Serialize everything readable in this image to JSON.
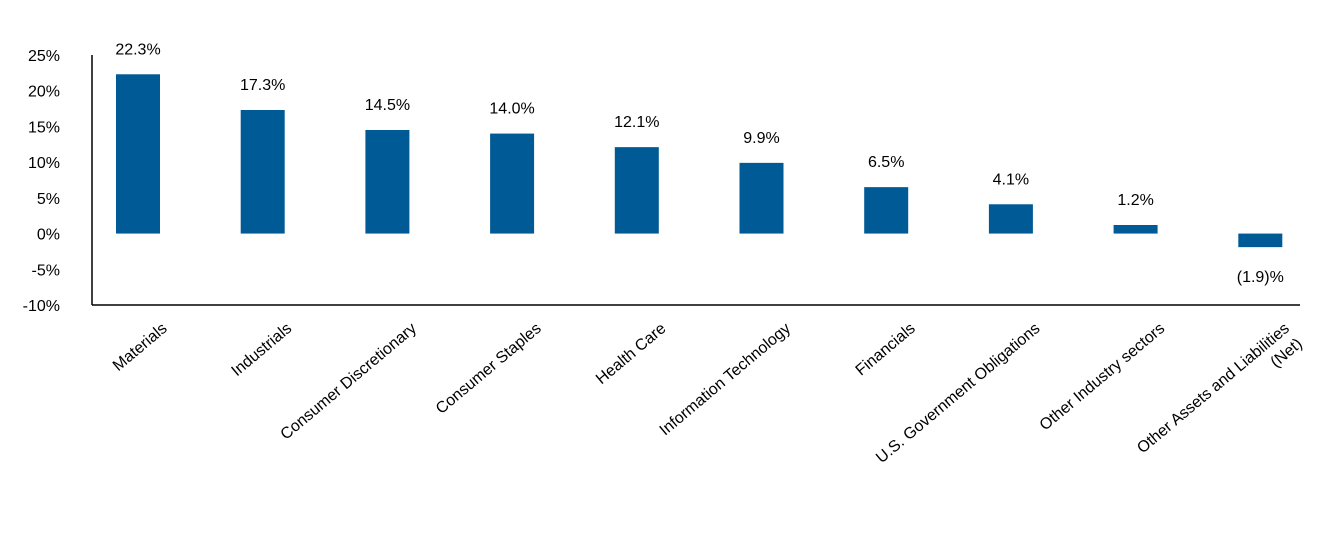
{
  "chart_data": {
    "type": "bar",
    "categories": [
      "Materials",
      "Industrials",
      "Consumer Discretionary",
      "Consumer Staples",
      "Health Care",
      "Information Technology",
      "Financials",
      "U.S. Government Obligations",
      "Other Industry sectors",
      [
        "Other Assets and Liabilities",
        "(Net)"
      ]
    ],
    "values": [
      22.3,
      17.3,
      14.5,
      14.0,
      12.1,
      9.9,
      6.5,
      4.1,
      1.2,
      -1.9
    ],
    "data_labels": [
      "22.3%",
      "17.3%",
      "14.5%",
      "14.0%",
      "12.1%",
      "9.9%",
      "6.5%",
      "4.1%",
      "1.2%",
      "(1.9)%"
    ],
    "y_ticks": [
      25,
      20,
      15,
      10,
      5,
      0,
      -5,
      -10
    ],
    "y_tick_labels": [
      "25%",
      "20%",
      "15%",
      "10%",
      "5%",
      "0%",
      "-5%",
      "-10%"
    ],
    "ylim": [
      -10,
      25
    ],
    "bar_color": "#005a96",
    "grid": false,
    "legend": "none"
  }
}
